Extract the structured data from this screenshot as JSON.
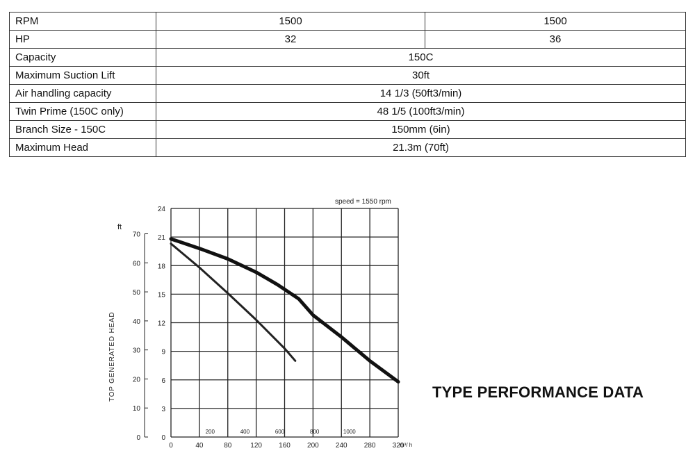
{
  "spec_table": {
    "rows": [
      {
        "label": "RPM",
        "values": [
          "1500",
          "1500"
        ]
      },
      {
        "label": "HP",
        "values": [
          "32",
          "36"
        ]
      },
      {
        "label": "Capacity",
        "values": [
          "150C"
        ]
      },
      {
        "label": "Maximum Suction Lift",
        "values": [
          "30ft"
        ]
      },
      {
        "label": "Air handling capacity",
        "values": [
          "14 1/3 (50ft3/min)"
        ]
      },
      {
        "label": "Twin Prime (150C only)",
        "values": [
          "48 1/5 (100ft3/min)"
        ]
      },
      {
        "label": "Branch Size - 150C",
        "values": [
          "150mm (6in)"
        ]
      },
      {
        "label": "Maximum Head",
        "values": [
          "21.3m (70ft)"
        ]
      }
    ]
  },
  "section_title": "TYPE PERFORMANCE DATA",
  "chart_data": {
    "type": "line",
    "annotation": "speed = 1550 rpm",
    "xlabel": "",
    "x_unit": "m³/ h",
    "ylabel": "TOP GENERATED HEAD",
    "y2_unit": "ft",
    "xlim": [
      0,
      320
    ],
    "ylim": [
      0,
      24
    ],
    "x_ticks": [
      "0",
      "40",
      "80",
      "120",
      "160",
      "200",
      "240",
      "280",
      "320"
    ],
    "x_ticks_secondary": [
      "200",
      "400",
      "600",
      "800",
      "1000"
    ],
    "x_ticks_secondary_values": [
      200,
      400,
      600,
      800,
      1000
    ],
    "y_ticks": [
      "0",
      "3",
      "6",
      "9",
      "12",
      "15",
      "18",
      "21",
      "24"
    ],
    "y_ticks_secondary": [
      "0",
      "10",
      "20",
      "30",
      "40",
      "50",
      "60",
      "70"
    ],
    "y_ticks_secondary_values": [
      0,
      10,
      20,
      30,
      40,
      50,
      60,
      70
    ],
    "grid": true,
    "series": [
      {
        "color": "#111111",
        "x": [
          0,
          40,
          80,
          120,
          150,
          180,
          200,
          240,
          280,
          320
        ],
        "y": [
          20.8,
          19.8,
          18.7,
          17.3,
          16.0,
          14.5,
          12.8,
          10.5,
          8.0,
          5.8
        ]
      },
      {
        "color": "#222222",
        "x": [
          0,
          40,
          80,
          120,
          160,
          175
        ],
        "y": [
          20.3,
          17.8,
          15.1,
          12.3,
          9.3,
          8.0
        ]
      }
    ]
  }
}
